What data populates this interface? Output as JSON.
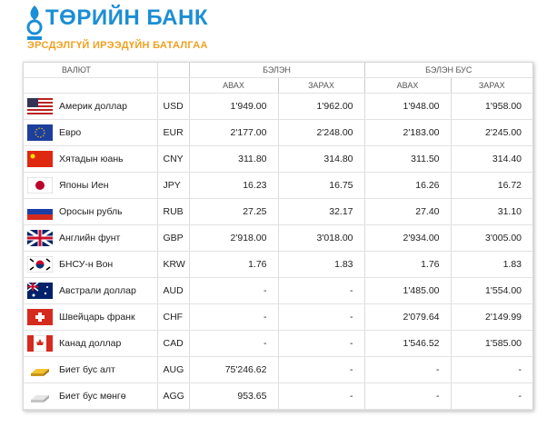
{
  "header": {
    "title": "ТӨРИЙН БАНК",
    "tagline": "ЭРСДЭЛГҮЙ ИРЭЭДҮЙН БАТАЛГАА"
  },
  "table": {
    "columns": {
      "currency": "ВАЛЮТ",
      "cash": "БЭЛЭН",
      "noncash": "БЭЛЭН БУС",
      "buy": "АВАХ",
      "sell": "ЗАРАХ"
    },
    "rows": [
      [
        "Америк доллар",
        "USD",
        "1'949.00",
        "1'962.00",
        "1'948.00",
        "1'958.00"
      ],
      [
        "Евро",
        "EUR",
        "2'177.00",
        "2'248.00",
        "2'183.00",
        "2'245.00"
      ],
      [
        "Хятадын юань",
        "CNY",
        "311.80",
        "314.80",
        "311.50",
        "314.40"
      ],
      [
        "Японы Иен",
        "JPY",
        "16.23",
        "16.75",
        "16.26",
        "16.72"
      ],
      [
        "Оросын рубль",
        "RUB",
        "27.25",
        "32.17",
        "27.40",
        "31.10"
      ],
      [
        "Английн фунт",
        "GBP",
        "2'918.00",
        "3'018.00",
        "2'934.00",
        "3'005.00"
      ],
      [
        "БНСУ-н Вон",
        "KRW",
        "1.76",
        "1.83",
        "1.76",
        "1.83"
      ],
      [
        "Австрали доллар",
        "AUD",
        "-",
        "-",
        "1'485.00",
        "1'554.00"
      ],
      [
        "Швейцарь франк",
        "CHF",
        "-",
        "-",
        "2'079.64",
        "2'149.99"
      ],
      [
        "Канад доллар",
        "CAD",
        "-",
        "-",
        "1'546.52",
        "1'585.00"
      ],
      [
        "Биет бус алт",
        "AUG",
        "75'246.62",
        "-",
        "-",
        "-"
      ],
      [
        "Биет бус мөнгө",
        "AGG",
        "953.65",
        "-",
        "-",
        "-"
      ]
    ]
  }
}
